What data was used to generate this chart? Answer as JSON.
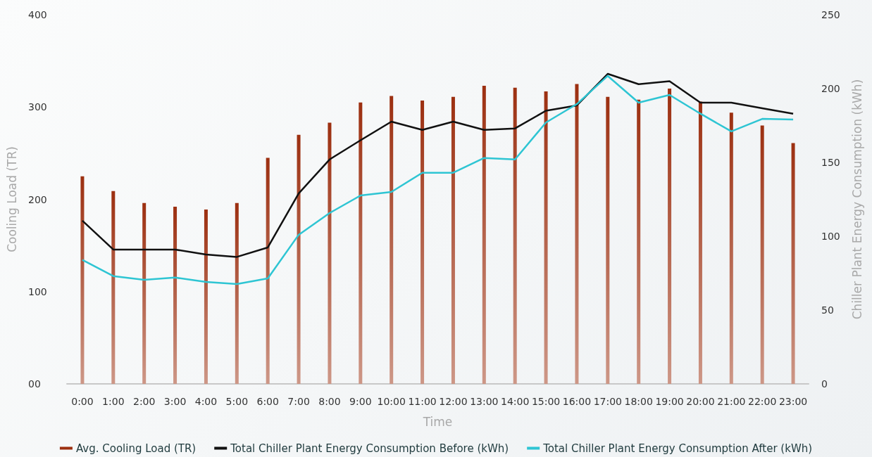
{
  "chart_data": {
    "type": "bar",
    "xlabel": "Time",
    "ylabel": "Cooling Load (TR)",
    "y2label": "Chiller Plant Energy Consumption (kWh)",
    "categories": [
      "0:00",
      "1:00",
      "2:00",
      "3:00",
      "4:00",
      "5:00",
      "6:00",
      "7:00",
      "8:00",
      "9:00",
      "10:00",
      "11:00",
      "12:00",
      "13:00",
      "14:00",
      "15:00",
      "16:00",
      "17:00",
      "18:00",
      "19:00",
      "20:00",
      "21:00",
      "22:00",
      "23:00"
    ],
    "series": [
      {
        "name": "Avg. Cooling Load (TR)",
        "color": "#9c2f10",
        "values": [
          225,
          209,
          196,
          192,
          189,
          196,
          245,
          270,
          283,
          305,
          312,
          307,
          311,
          323,
          321,
          317,
          325,
          311,
          308,
          320,
          306,
          294,
          280,
          261
        ]
      },
      {
        "name": "Total Chiller Plant Energy Consumption Before (kWh)",
        "type": "line",
        "axis": "y2",
        "color": "#111111",
        "values": [
          110.5,
          91,
          91,
          91,
          87.6,
          86,
          92.4,
          129,
          152,
          165,
          177.6,
          172,
          177.6,
          172,
          173,
          185,
          188.6,
          210,
          203,
          205,
          190.5,
          190.5,
          186.7,
          183
        ]
      },
      {
        "name": "Total Chiller Plant Energy Consumption After (kWh)",
        "type": "line",
        "axis": "y2",
        "color": "#2ec5d3",
        "values": [
          84,
          73,
          70.5,
          72,
          69,
          67.6,
          71.4,
          101,
          115.7,
          127.6,
          130,
          143,
          143,
          153,
          152,
          177,
          189.5,
          208.6,
          190.5,
          195.7,
          183,
          171,
          179.5,
          179
        ]
      }
    ],
    "ylim": [
      0,
      400
    ],
    "yticks": [
      {
        "value": 0,
        "label": "00"
      },
      100,
      200,
      300,
      400
    ],
    "y2lim": [
      0,
      250
    ],
    "y2ticks": [
      0,
      50,
      100,
      150,
      200,
      250
    ],
    "grid": false,
    "legend": "bottom",
    "marker": "none",
    "line_style": "solid"
  }
}
